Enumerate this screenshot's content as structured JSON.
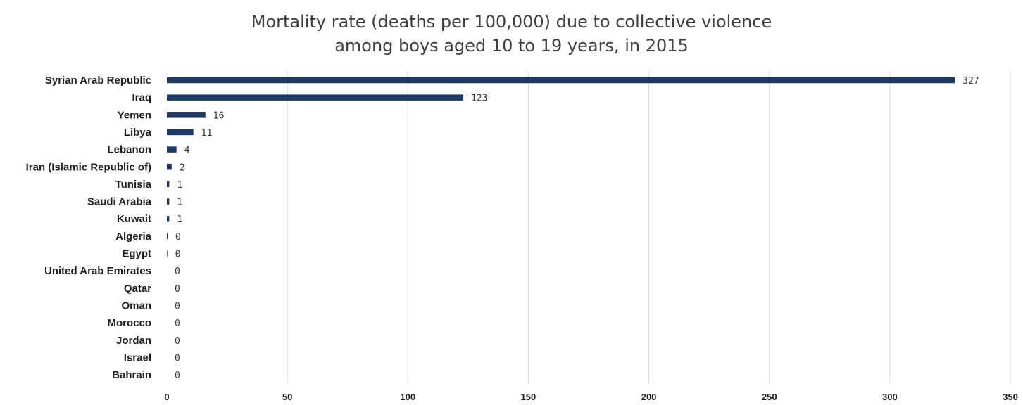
{
  "chart_data": {
    "type": "bar",
    "orientation": "horizontal",
    "title": [
      "Mortality rate (deaths per 100,000) due to collective violence",
      "among boys aged 10 to 19 years, in 2015"
    ],
    "categories": [
      "Syrian Arab Republic",
      "Iraq",
      "Yemen",
      "Libya",
      "Lebanon",
      "Iran (Islamic Republic of)",
      "Tunisia",
      "Saudi Arabia",
      "Kuwait",
      "Algeria",
      "Egypt",
      "United Arab Emirates",
      "Qatar",
      "Oman",
      "Morocco",
      "Jordan",
      "Israel",
      "Bahrain"
    ],
    "values": [
      327,
      123,
      16,
      11,
      4,
      2,
      1,
      1,
      1,
      0.3,
      0.2,
      0,
      0,
      0,
      0,
      0,
      0,
      0
    ],
    "data_labels": [
      "327",
      "123",
      "16",
      "11",
      "4",
      "2",
      "1",
      "1",
      "1",
      "0",
      "0",
      "0",
      "0",
      "0",
      "0",
      "0",
      "0",
      "0"
    ],
    "xlim": [
      0,
      350
    ],
    "xticks": [
      "0",
      "50",
      "100",
      "150",
      "200",
      "250",
      "300",
      "350"
    ],
    "grid": true,
    "bar_color": "#1f3864",
    "xlabel": "",
    "ylabel": ""
  }
}
